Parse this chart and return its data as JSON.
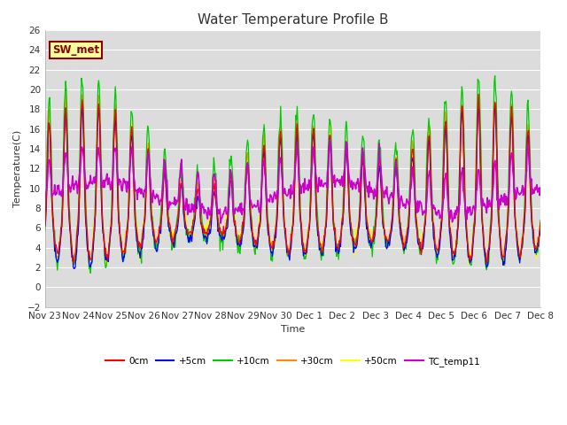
{
  "title": "Water Temperature Profile B",
  "xlabel": "Time",
  "ylabel": "Temperature(C)",
  "ylim": [
    -2,
    26
  ],
  "yticks": [
    -2,
    0,
    2,
    4,
    6,
    8,
    10,
    12,
    14,
    16,
    18,
    20,
    22,
    24,
    26
  ],
  "annotation_text": "SW_met",
  "annotation_color": "#8B0000",
  "annotation_bg": "#FFFF99",
  "bg_color": "#DCDCDC",
  "series_colors": {
    "0cm": "#FF0000",
    "+5cm": "#0000FF",
    "+10cm": "#00CC00",
    "+30cm": "#FF8C00",
    "+50cm": "#FFFF00",
    "TC_temp11": "#CC00CC"
  },
  "xtick_labels": [
    "Nov 23",
    "Nov 24",
    "Nov 25",
    "Nov 26",
    "Nov 27",
    "Nov 28",
    "Nov 29",
    "Nov 30",
    "Dec 1",
    "Dec 2",
    "Dec 3",
    "Dec 4",
    "Dec 5",
    "Dec 6",
    "Dec 7",
    "Dec 8"
  ],
  "num_points": 720,
  "days": 15,
  "lw": 0.9,
  "tc_lw": 1.2,
  "fig_width": 6.4,
  "fig_height": 4.8,
  "dpi": 100
}
